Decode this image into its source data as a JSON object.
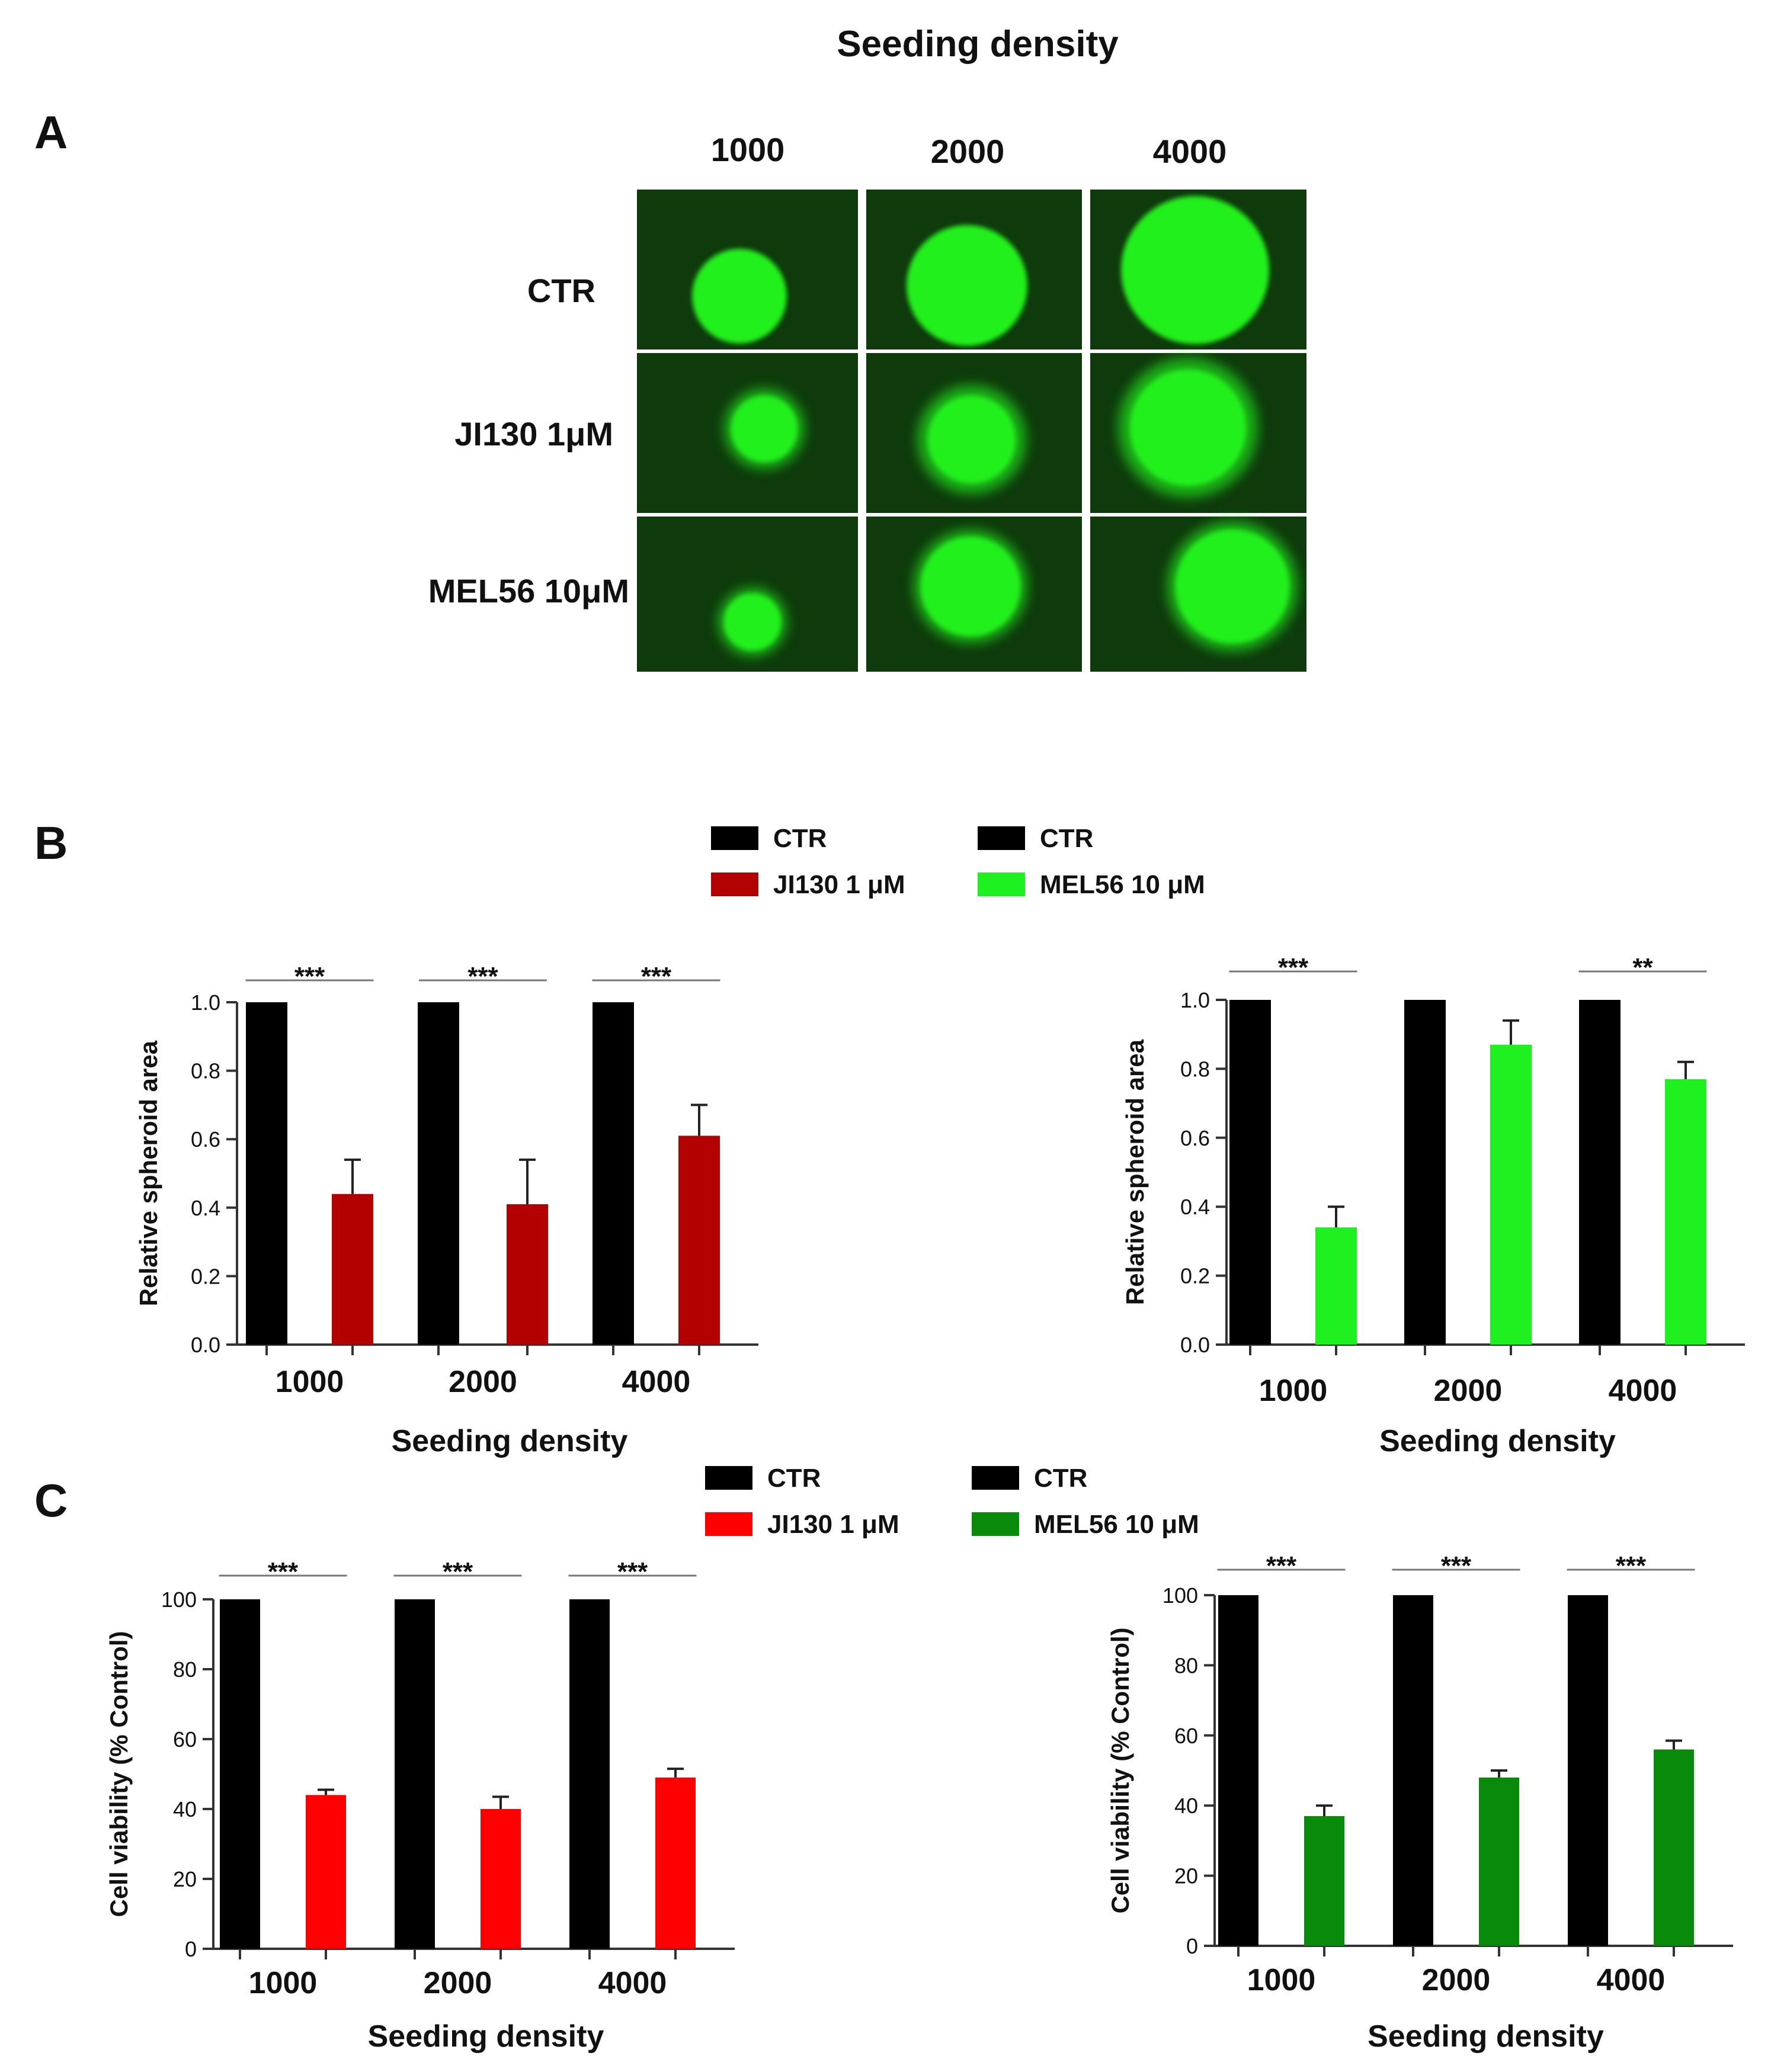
{
  "figure": {
    "title": "Seeding density",
    "panel_a_label": "A",
    "panel_b_label": "B",
    "panel_c_label": "C",
    "panel_a": {
      "columns": [
        "1000",
        "2000",
        "4000"
      ],
      "rows": [
        "CTR",
        "JI130 1μM",
        "MEL56 10μM"
      ],
      "spheroid_color": "#22f01c",
      "background_color": "#0e3a0c"
    }
  },
  "chart_data": [
    {
      "id": "b-left",
      "type": "bar",
      "categories": [
        "1000",
        "2000",
        "4000"
      ],
      "xlabel": "Seeding density",
      "ylabel": "Relative spheroid area",
      "ylim": [
        0,
        1.0
      ],
      "yticks": [
        "0.0",
        "0.2",
        "0.4",
        "0.6",
        "0.8",
        "1.0"
      ],
      "series": [
        {
          "name": "CTR",
          "color": "#000000",
          "values": [
            1.0,
            1.0,
            1.0
          ],
          "errors": [
            0,
            0,
            0
          ]
        },
        {
          "name": "JI130 1 μM",
          "color": "#b30000",
          "values": [
            0.44,
            0.41,
            0.61
          ],
          "errors": [
            0.1,
            0.13,
            0.09
          ]
        }
      ],
      "significance": [
        "***",
        "***",
        "***"
      ]
    },
    {
      "id": "b-right",
      "type": "bar",
      "categories": [
        "1000",
        "2000",
        "4000"
      ],
      "xlabel": "Seeding density",
      "ylabel": "Relative spheroid area",
      "ylim": [
        0,
        1.0
      ],
      "yticks": [
        "0.0",
        "0.2",
        "0.4",
        "0.6",
        "0.8",
        "1.0"
      ],
      "series": [
        {
          "name": "CTR",
          "color": "#000000",
          "values": [
            1.0,
            1.0,
            1.0
          ],
          "errors": [
            0,
            0,
            0
          ]
        },
        {
          "name": "MEL56 10 μM",
          "color": "#1ff01f",
          "values": [
            0.34,
            0.87,
            0.77
          ],
          "errors": [
            0.06,
            0.07,
            0.05
          ]
        }
      ],
      "significance": [
        "***",
        "",
        "**"
      ]
    },
    {
      "id": "c-left",
      "type": "bar",
      "categories": [
        "1000",
        "2000",
        "4000"
      ],
      "xlabel": "Seeding density",
      "ylabel": "Cell viability (% Control)",
      "ylim": [
        0,
        100
      ],
      "yticks": [
        "0",
        "20",
        "40",
        "60",
        "80",
        "100"
      ],
      "series": [
        {
          "name": "CTR",
          "color": "#000000",
          "values": [
            100,
            100,
            100
          ],
          "errors": [
            0,
            0,
            0
          ]
        },
        {
          "name": "JI130 1 μM",
          "color": "#ff0000",
          "values": [
            44,
            40,
            49
          ],
          "errors": [
            1.5,
            3.5,
            2.5
          ]
        }
      ],
      "significance": [
        "***",
        "***",
        "***"
      ]
    },
    {
      "id": "c-right",
      "type": "bar",
      "categories": [
        "1000",
        "2000",
        "4000"
      ],
      "xlabel": "Seeding density",
      "ylabel": "Cell viability (% Control)",
      "ylim": [
        0,
        100
      ],
      "yticks": [
        "0",
        "20",
        "40",
        "60",
        "80",
        "100"
      ],
      "series": [
        {
          "name": "CTR",
          "color": "#000000",
          "values": [
            100,
            100,
            100
          ],
          "errors": [
            0,
            0,
            0
          ]
        },
        {
          "name": "MEL56 10 μM",
          "color": "#0a8a0a",
          "values": [
            37,
            48,
            56
          ],
          "errors": [
            3,
            2,
            2.5
          ]
        }
      ],
      "significance": [
        "***",
        "***",
        "***"
      ]
    }
  ]
}
